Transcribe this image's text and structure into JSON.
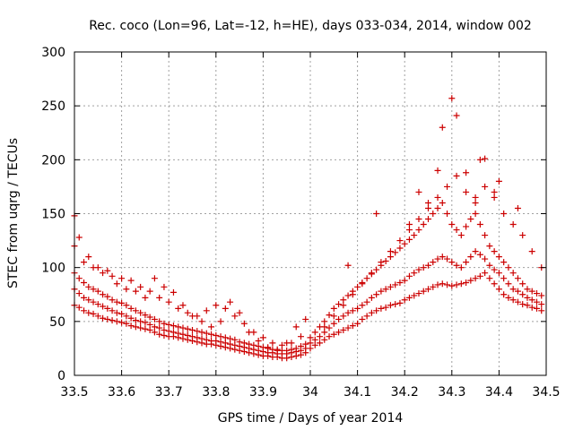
{
  "chart_data": {
    "type": "scatter",
    "title": "Rec. coco (Lon=96, Lat=-12, h=HE), days 033-034, 2014, window 002",
    "xlabel": "GPS time / Days of year 2014",
    "ylabel": "STEC from uqrg / TECUs",
    "xlim": [
      33.5,
      34.5
    ],
    "ylim": [
      0,
      300
    ],
    "xticks": [
      "33.5",
      "33.6",
      "33.7",
      "33.8",
      "33.9",
      "34",
      "34.1",
      "34.2",
      "34.3",
      "34.4",
      "34.5"
    ],
    "yticks": [
      "0",
      "50",
      "100",
      "150",
      "200",
      "250",
      "300"
    ],
    "grid": true,
    "marker": "plus",
    "color": "#cc0000",
    "series": [
      {
        "x": [
          33.5,
          33.51,
          33.52,
          33.53,
          33.54,
          33.55,
          33.56,
          33.57,
          33.58,
          33.59,
          33.6,
          33.61,
          33.62,
          33.63,
          33.64,
          33.65,
          33.66,
          33.67,
          33.68,
          33.69,
          33.7,
          33.71,
          33.72,
          33.73,
          33.74,
          33.75,
          33.76,
          33.77,
          33.78,
          33.79,
          33.8,
          33.81,
          33.82,
          33.83,
          33.84,
          33.85,
          33.86,
          33.87,
          33.88,
          33.89,
          33.9,
          33.91,
          33.92,
          33.93,
          33.94,
          33.95,
          33.96,
          33.97,
          33.98,
          33.99
        ],
        "y": [
          65,
          63,
          60,
          58,
          57,
          55,
          53,
          52,
          51,
          50,
          49,
          48,
          46,
          45,
          44,
          43,
          42,
          40,
          38,
          37,
          36,
          36,
          35,
          34,
          33,
          32,
          31,
          30,
          29,
          29,
          28,
          27,
          26,
          25,
          24,
          23,
          22,
          21,
          20,
          19,
          18,
          18,
          17,
          17,
          16,
          16,
          17,
          18,
          19,
          21
        ]
      },
      {
        "x": [
          33.5,
          33.51,
          33.52,
          33.53,
          33.54,
          33.55,
          33.56,
          33.57,
          33.58,
          33.59,
          33.6,
          33.61,
          33.62,
          33.63,
          33.64,
          33.65,
          33.66,
          33.67,
          33.68,
          33.69,
          33.7,
          33.71,
          33.72,
          33.73,
          33.74,
          33.75,
          33.76,
          33.77,
          33.78,
          33.79,
          33.8,
          33.81,
          33.82,
          33.83,
          33.84,
          33.85,
          33.86,
          33.87,
          33.88,
          33.89,
          33.9,
          33.91,
          33.92,
          33.93,
          33.94,
          33.95,
          33.96,
          33.97,
          33.98,
          33.99
        ],
        "y": [
          80,
          76,
          72,
          70,
          68,
          66,
          64,
          62,
          60,
          58,
          57,
          55,
          53,
          51,
          50,
          49,
          47,
          45,
          44,
          42,
          41,
          40,
          39,
          38,
          37,
          36,
          35,
          34,
          33,
          32,
          32,
          31,
          30,
          29,
          28,
          27,
          26,
          25,
          24,
          23,
          22,
          21,
          21,
          20,
          20,
          20,
          21,
          22,
          23,
          25
        ]
      },
      {
        "x": [
          33.5,
          33.51,
          33.52,
          33.53,
          33.54,
          33.55,
          33.56,
          33.57,
          33.58,
          33.59,
          33.6,
          33.61,
          33.62,
          33.63,
          33.64,
          33.65,
          33.66,
          33.67,
          33.68,
          33.69,
          33.7,
          33.71,
          33.72,
          33.73,
          33.74,
          33.75,
          33.76,
          33.77,
          33.78,
          33.79,
          33.8,
          33.81,
          33.82,
          33.83,
          33.84,
          33.85,
          33.86,
          33.87,
          33.88,
          33.89,
          33.9,
          33.91,
          33.92,
          33.93,
          33.94,
          33.95,
          33.96,
          33.97,
          33.98,
          33.99
        ],
        "y": [
          95,
          90,
          86,
          82,
          80,
          78,
          75,
          73,
          70,
          68,
          67,
          65,
          62,
          60,
          58,
          56,
          54,
          52,
          50,
          48,
          47,
          46,
          45,
          44,
          43,
          42,
          41,
          40,
          39,
          38,
          37,
          36,
          35,
          34,
          33,
          31,
          30,
          29,
          28,
          27,
          26,
          25,
          24,
          23,
          23,
          23,
          24,
          25,
          27,
          29
        ]
      },
      {
        "x": [
          33.5,
          33.52,
          33.54,
          33.56,
          33.58,
          33.6,
          33.62,
          33.64,
          33.66,
          33.68,
          33.7,
          33.72,
          33.74,
          33.76,
          33.78,
          33.8,
          33.82,
          33.84,
          33.86,
          33.88,
          33.9,
          33.92,
          33.94,
          33.96,
          33.98
        ],
        "y": [
          120,
          105,
          100,
          95,
          92,
          90,
          88,
          82,
          78,
          72,
          68,
          62,
          58,
          55,
          60,
          65,
          62,
          55,
          48,
          40,
          35,
          30,
          28,
          30,
          36
        ]
      },
      {
        "x": [
          33.5,
          33.51,
          33.53,
          33.55,
          33.57,
          33.59,
          33.61,
          33.63,
          33.65,
          33.67,
          33.69,
          33.71,
          33.73,
          33.75,
          33.77,
          33.79,
          33.81,
          33.83,
          33.85,
          33.87,
          33.89,
          33.91,
          33.93,
          33.95,
          33.97,
          33.99
        ],
        "y": [
          148,
          128,
          110,
          100,
          97,
          85,
          80,
          78,
          72,
          90,
          82,
          77,
          65,
          55,
          50,
          45,
          50,
          68,
          58,
          40,
          32,
          26,
          24,
          30,
          45,
          52
        ]
      },
      {
        "x": [
          34.0,
          34.01,
          34.02,
          34.03,
          34.04,
          34.05,
          34.06,
          34.07,
          34.08,
          34.09,
          34.1,
          34.11,
          34.12,
          34.13,
          34.14,
          34.15,
          34.16,
          34.17,
          34.18,
          34.19,
          34.2,
          34.21,
          34.22,
          34.23,
          34.24,
          34.25,
          34.26,
          34.27,
          34.28,
          34.29,
          34.3,
          34.31,
          34.32,
          34.33,
          34.34,
          34.35,
          34.36,
          34.37,
          34.38,
          34.39,
          34.4,
          34.41,
          34.42,
          34.43,
          34.44,
          34.45,
          34.46,
          34.47,
          34.48,
          34.49
        ],
        "y": [
          25,
          28,
          30,
          33,
          36,
          38,
          40,
          42,
          44,
          46,
          48,
          52,
          55,
          58,
          60,
          62,
          63,
          65,
          66,
          67,
          70,
          72,
          74,
          76,
          78,
          80,
          82,
          84,
          85,
          84,
          83,
          84,
          85,
          86,
          88,
          90,
          92,
          95,
          90,
          85,
          80,
          75,
          72,
          70,
          68,
          66,
          65,
          63,
          62,
          60
        ]
      },
      {
        "x": [
          34.0,
          34.01,
          34.02,
          34.03,
          34.04,
          34.05,
          34.06,
          34.07,
          34.08,
          34.09,
          34.1,
          34.11,
          34.12,
          34.13,
          34.14,
          34.15,
          34.16,
          34.17,
          34.18,
          34.19,
          34.2,
          34.21,
          34.22,
          34.23,
          34.24,
          34.25,
          34.26,
          34.27,
          34.28,
          34.29,
          34.3,
          34.31,
          34.32,
          34.33,
          34.34,
          34.35,
          34.36,
          34.37,
          34.38,
          34.39,
          34.4,
          34.41,
          34.42,
          34.43,
          34.44,
          34.45,
          34.46,
          34.47,
          34.48,
          34.49
        ],
        "y": [
          30,
          33,
          36,
          40,
          44,
          48,
          52,
          55,
          58,
          60,
          62,
          65,
          68,
          72,
          75,
          78,
          80,
          82,
          84,
          86,
          88,
          92,
          95,
          98,
          100,
          102,
          105,
          108,
          110,
          108,
          105,
          102,
          100,
          105,
          110,
          115,
          112,
          108,
          102,
          98,
          95,
          90,
          85,
          80,
          78,
          75,
          72,
          70,
          68,
          66
        ]
      },
      {
        "x": [
          34.0,
          34.01,
          34.02,
          34.03,
          34.04,
          34.05,
          34.06,
          34.07,
          34.08,
          34.09,
          34.1,
          34.11,
          34.12,
          34.13,
          34.14,
          34.15,
          34.16,
          34.17,
          34.18,
          34.19,
          34.2,
          34.21,
          34.22,
          34.23,
          34.24,
          34.25,
          34.26,
          34.27,
          34.28,
          34.29,
          34.3,
          34.31,
          34.32,
          34.33,
          34.34,
          34.35,
          34.36,
          34.37,
          34.38,
          34.39,
          34.4,
          34.41,
          34.42,
          34.43,
          34.44,
          34.45,
          34.46,
          34.47,
          34.48,
          34.49
        ],
        "y": [
          35,
          40,
          45,
          50,
          56,
          62,
          66,
          70,
          74,
          78,
          82,
          86,
          90,
          94,
          98,
          102,
          106,
          110,
          114,
          118,
          122,
          126,
          130,
          135,
          140,
          145,
          150,
          155,
          160,
          150,
          140,
          135,
          130,
          138,
          145,
          150,
          140,
          130,
          120,
          115,
          110,
          105,
          100,
          95,
          90,
          85,
          80,
          78,
          76,
          74
        ]
      },
      {
        "x": [
          34.03,
          34.05,
          34.07,
          34.09,
          34.11,
          34.13,
          34.15,
          34.17,
          34.19,
          34.21,
          34.23,
          34.25,
          34.27,
          34.29,
          34.31,
          34.33,
          34.35,
          34.37,
          34.39,
          34.41,
          34.43,
          34.45,
          34.47,
          34.49
        ],
        "y": [
          45,
          55,
          65,
          75,
          85,
          95,
          105,
          115,
          125,
          135,
          145,
          155,
          165,
          175,
          185,
          170,
          160,
          175,
          165,
          150,
          140,
          130,
          115,
          100
        ]
      },
      {
        "x": [
          34.08,
          34.14,
          34.21,
          34.23,
          34.25,
          34.27,
          34.28,
          34.3,
          34.31,
          34.33,
          34.35,
          34.36,
          34.37,
          34.39,
          34.4,
          34.44
        ],
        "y": [
          102,
          150,
          140,
          170,
          160,
          190,
          230,
          257,
          241,
          188,
          165,
          200,
          201,
          170,
          180,
          155
        ]
      }
    ]
  }
}
